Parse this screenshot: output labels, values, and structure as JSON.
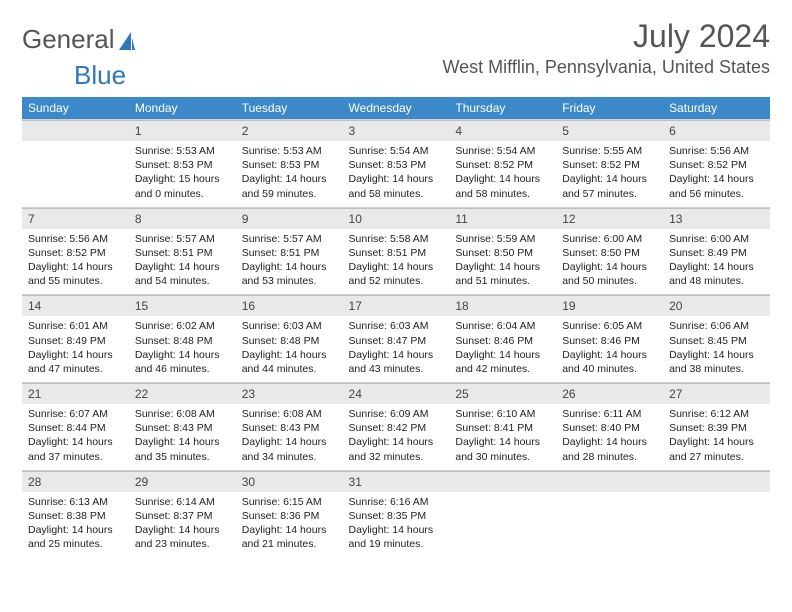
{
  "logo": {
    "text1": "General",
    "text2": "Blue",
    "shape_color": "#2f77b9"
  },
  "header": {
    "month": "July 2024",
    "location": "West Mifflin, Pennsylvania, United States"
  },
  "colors": {
    "header_bg": "#3b89c9",
    "header_fg": "#ffffff",
    "daynum_bg": "#e9e9e9",
    "border": "#cfcfcf",
    "text": "#333333"
  },
  "weekdays": [
    "Sunday",
    "Monday",
    "Tuesday",
    "Wednesday",
    "Thursday",
    "Friday",
    "Saturday"
  ],
  "weeks": [
    [
      null,
      {
        "n": "1",
        "sr": "5:53 AM",
        "ss": "8:53 PM",
        "dl": "15 hours and 0 minutes."
      },
      {
        "n": "2",
        "sr": "5:53 AM",
        "ss": "8:53 PM",
        "dl": "14 hours and 59 minutes."
      },
      {
        "n": "3",
        "sr": "5:54 AM",
        "ss": "8:53 PM",
        "dl": "14 hours and 58 minutes."
      },
      {
        "n": "4",
        "sr": "5:54 AM",
        "ss": "8:52 PM",
        "dl": "14 hours and 58 minutes."
      },
      {
        "n": "5",
        "sr": "5:55 AM",
        "ss": "8:52 PM",
        "dl": "14 hours and 57 minutes."
      },
      {
        "n": "6",
        "sr": "5:56 AM",
        "ss": "8:52 PM",
        "dl": "14 hours and 56 minutes."
      }
    ],
    [
      {
        "n": "7",
        "sr": "5:56 AM",
        "ss": "8:52 PM",
        "dl": "14 hours and 55 minutes."
      },
      {
        "n": "8",
        "sr": "5:57 AM",
        "ss": "8:51 PM",
        "dl": "14 hours and 54 minutes."
      },
      {
        "n": "9",
        "sr": "5:57 AM",
        "ss": "8:51 PM",
        "dl": "14 hours and 53 minutes."
      },
      {
        "n": "10",
        "sr": "5:58 AM",
        "ss": "8:51 PM",
        "dl": "14 hours and 52 minutes."
      },
      {
        "n": "11",
        "sr": "5:59 AM",
        "ss": "8:50 PM",
        "dl": "14 hours and 51 minutes."
      },
      {
        "n": "12",
        "sr": "6:00 AM",
        "ss": "8:50 PM",
        "dl": "14 hours and 50 minutes."
      },
      {
        "n": "13",
        "sr": "6:00 AM",
        "ss": "8:49 PM",
        "dl": "14 hours and 48 minutes."
      }
    ],
    [
      {
        "n": "14",
        "sr": "6:01 AM",
        "ss": "8:49 PM",
        "dl": "14 hours and 47 minutes."
      },
      {
        "n": "15",
        "sr": "6:02 AM",
        "ss": "8:48 PM",
        "dl": "14 hours and 46 minutes."
      },
      {
        "n": "16",
        "sr": "6:03 AM",
        "ss": "8:48 PM",
        "dl": "14 hours and 44 minutes."
      },
      {
        "n": "17",
        "sr": "6:03 AM",
        "ss": "8:47 PM",
        "dl": "14 hours and 43 minutes."
      },
      {
        "n": "18",
        "sr": "6:04 AM",
        "ss": "8:46 PM",
        "dl": "14 hours and 42 minutes."
      },
      {
        "n": "19",
        "sr": "6:05 AM",
        "ss": "8:46 PM",
        "dl": "14 hours and 40 minutes."
      },
      {
        "n": "20",
        "sr": "6:06 AM",
        "ss": "8:45 PM",
        "dl": "14 hours and 38 minutes."
      }
    ],
    [
      {
        "n": "21",
        "sr": "6:07 AM",
        "ss": "8:44 PM",
        "dl": "14 hours and 37 minutes."
      },
      {
        "n": "22",
        "sr": "6:08 AM",
        "ss": "8:43 PM",
        "dl": "14 hours and 35 minutes."
      },
      {
        "n": "23",
        "sr": "6:08 AM",
        "ss": "8:43 PM",
        "dl": "14 hours and 34 minutes."
      },
      {
        "n": "24",
        "sr": "6:09 AM",
        "ss": "8:42 PM",
        "dl": "14 hours and 32 minutes."
      },
      {
        "n": "25",
        "sr": "6:10 AM",
        "ss": "8:41 PM",
        "dl": "14 hours and 30 minutes."
      },
      {
        "n": "26",
        "sr": "6:11 AM",
        "ss": "8:40 PM",
        "dl": "14 hours and 28 minutes."
      },
      {
        "n": "27",
        "sr": "6:12 AM",
        "ss": "8:39 PM",
        "dl": "14 hours and 27 minutes."
      }
    ],
    [
      {
        "n": "28",
        "sr": "6:13 AM",
        "ss": "8:38 PM",
        "dl": "14 hours and 25 minutes."
      },
      {
        "n": "29",
        "sr": "6:14 AM",
        "ss": "8:37 PM",
        "dl": "14 hours and 23 minutes."
      },
      {
        "n": "30",
        "sr": "6:15 AM",
        "ss": "8:36 PM",
        "dl": "14 hours and 21 minutes."
      },
      {
        "n": "31",
        "sr": "6:16 AM",
        "ss": "8:35 PM",
        "dl": "14 hours and 19 minutes."
      },
      null,
      null,
      null
    ]
  ],
  "labels": {
    "sunrise": "Sunrise:",
    "sunset": "Sunset:",
    "daylight": "Daylight:"
  }
}
